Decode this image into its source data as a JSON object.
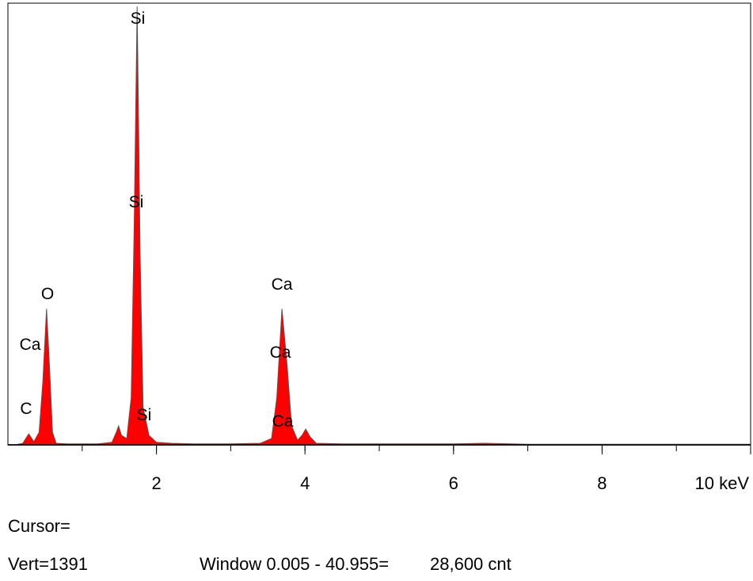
{
  "chart_data": {
    "type": "area",
    "x": [
      0.1,
      0.2,
      0.28,
      0.35,
      0.42,
      0.47,
      0.52,
      0.56,
      0.6,
      0.65,
      0.8,
      1.0,
      1.2,
      1.4,
      1.46,
      1.49,
      1.53,
      1.6,
      1.66,
      1.7,
      1.74,
      1.78,
      1.82,
      1.9,
      2.0,
      2.2,
      2.5,
      3.0,
      3.4,
      3.55,
      3.62,
      3.69,
      3.76,
      3.82,
      3.9,
      3.96,
      4.01,
      4.07,
      4.15,
      4.5,
      5.0,
      6.0,
      6.4,
      7,
      8,
      9,
      10
    ],
    "values": [
      0,
      5,
      35,
      10,
      40,
      200,
      432,
      250,
      40,
      5,
      3,
      3,
      3,
      8,
      40,
      60,
      30,
      20,
      150,
      700,
      1392,
      600,
      120,
      30,
      8,
      5,
      3,
      3,
      5,
      20,
      150,
      432,
      250,
      60,
      15,
      30,
      50,
      25,
      5,
      3,
      3,
      3,
      5,
      2,
      2,
      2,
      2
    ],
    "color": "#ff0000",
    "xlim": [
      0,
      10
    ],
    "xticks": [
      2,
      4,
      6,
      {
        "value": 10,
        "label": "10 keV"
      },
      8
    ],
    "ylim": [
      0,
      1400
    ],
    "annotations": [
      "Si",
      "Si",
      "O",
      "Ca",
      "Ca",
      "Ca",
      "C",
      "Si",
      "Ca"
    ],
    "status": {
      "cursor": "Cursor=",
      "vert": "Vert=1391",
      "window": "Window 0.005 - 40.955=",
      "count": "28,600 cnt"
    }
  }
}
